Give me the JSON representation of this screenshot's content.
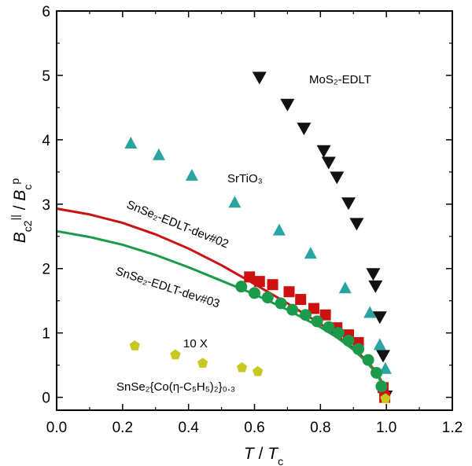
{
  "chart_data": {
    "type": "scatter",
    "xlim": [
      0.0,
      1.2
    ],
    "ylim": [
      -0.2,
      6
    ],
    "x_ticks": [
      "0.0",
      "0.2",
      "0.4",
      "0.6",
      "0.8",
      "1.0",
      "1.2"
    ],
    "y_ticks": [
      "0",
      "1",
      "2",
      "3",
      "4",
      "5",
      "6"
    ],
    "grid": false,
    "colors": {
      "mos2": "#111111",
      "srtio3": "#2aa3a3",
      "dev02": "#cc1111",
      "dev03": "#1a9a4a",
      "cointercalated": "#c8c820"
    },
    "series": [
      {
        "key": "mos2",
        "marker": "triangle-down",
        "points": [
          [
            0.615,
            4.97
          ],
          [
            0.7,
            4.55
          ],
          [
            0.75,
            4.18
          ],
          [
            0.81,
            3.83
          ],
          [
            0.825,
            3.65
          ],
          [
            0.85,
            3.42
          ],
          [
            0.885,
            3.02
          ],
          [
            0.91,
            2.7
          ],
          [
            0.96,
            1.92
          ],
          [
            0.967,
            1.73
          ],
          [
            0.98,
            1.25
          ],
          [
            0.99,
            0.65
          ],
          [
            0.998,
            0.02
          ]
        ]
      },
      {
        "key": "srtio3",
        "marker": "triangle-up",
        "points": [
          [
            0.225,
            3.95
          ],
          [
            0.31,
            3.77
          ],
          [
            0.41,
            3.45
          ],
          [
            0.54,
            3.03
          ],
          [
            0.675,
            2.6
          ],
          [
            0.77,
            2.24
          ],
          [
            0.875,
            1.7
          ],
          [
            0.95,
            1.32
          ],
          [
            0.98,
            0.82
          ],
          [
            0.997,
            0.45
          ]
        ]
      },
      {
        "key": "dev02",
        "marker": "square",
        "points": [
          [
            0.585,
            1.87
          ],
          [
            0.615,
            1.8
          ],
          [
            0.655,
            1.75
          ],
          [
            0.705,
            1.64
          ],
          [
            0.74,
            1.52
          ],
          [
            0.78,
            1.38
          ],
          [
            0.815,
            1.28
          ],
          [
            0.85,
            1.08
          ],
          [
            0.885,
            0.97
          ],
          [
            0.915,
            0.85
          ],
          [
            0.99,
            0.15
          ],
          [
            0.995,
            0.0
          ]
        ]
      },
      {
        "key": "dev03",
        "marker": "circle",
        "points": [
          [
            0.56,
            1.72
          ],
          [
            0.6,
            1.62
          ],
          [
            0.64,
            1.55
          ],
          [
            0.68,
            1.46
          ],
          [
            0.715,
            1.36
          ],
          [
            0.755,
            1.28
          ],
          [
            0.79,
            1.18
          ],
          [
            0.825,
            1.09
          ],
          [
            0.855,
            1.0
          ],
          [
            0.885,
            0.88
          ],
          [
            0.915,
            0.75
          ],
          [
            0.945,
            0.58
          ],
          [
            0.97,
            0.38
          ],
          [
            0.985,
            0.17
          ]
        ]
      },
      {
        "key": "cointercalated",
        "marker": "pentagon",
        "points": [
          [
            0.237,
            0.8
          ],
          [
            0.36,
            0.66
          ],
          [
            0.443,
            0.53
          ],
          [
            0.562,
            0.46
          ],
          [
            0.61,
            0.4
          ],
          [
            0.997,
            -0.02
          ]
        ]
      }
    ],
    "fit_curves": [
      {
        "key": "dev02",
        "points": [
          [
            0.0,
            2.93
          ],
          [
            0.1,
            2.84
          ],
          [
            0.2,
            2.71
          ],
          [
            0.3,
            2.53
          ],
          [
            0.4,
            2.31
          ],
          [
            0.5,
            2.05
          ],
          [
            0.6,
            1.76
          ],
          [
            0.7,
            1.46
          ],
          [
            0.8,
            1.14
          ],
          [
            0.85,
            0.96
          ],
          [
            0.9,
            0.76
          ],
          [
            0.94,
            0.57
          ],
          [
            0.97,
            0.39
          ],
          [
            0.985,
            0.25
          ],
          [
            0.995,
            0.12
          ],
          [
            1.0,
            0.0
          ]
        ]
      },
      {
        "key": "dev03",
        "points": [
          [
            0.0,
            2.58
          ],
          [
            0.1,
            2.49
          ],
          [
            0.2,
            2.37
          ],
          [
            0.3,
            2.21
          ],
          [
            0.4,
            2.02
          ],
          [
            0.5,
            1.81
          ],
          [
            0.6,
            1.6
          ],
          [
            0.7,
            1.36
          ],
          [
            0.8,
            1.09
          ],
          [
            0.85,
            0.93
          ],
          [
            0.9,
            0.74
          ],
          [
            0.94,
            0.55
          ],
          [
            0.97,
            0.37
          ],
          [
            0.985,
            0.23
          ],
          [
            0.995,
            0.11
          ],
          [
            1.0,
            0.0
          ]
        ]
      }
    ],
    "annotations": {
      "mos2": "MoS₂-EDLT",
      "srtio3": "SrTiO₃",
      "dev02": "SnSe₂-EDLT-dev#02",
      "dev03": "SnSe₂-EDLT-dev#03",
      "cointercalated": "SnSe₂{Co(η-C₅H₅)₂}₀.₃",
      "scale": "10 X"
    },
    "xlabel": "T / Tc",
    "ylabel": "Bc2∥ / Bcp"
  }
}
